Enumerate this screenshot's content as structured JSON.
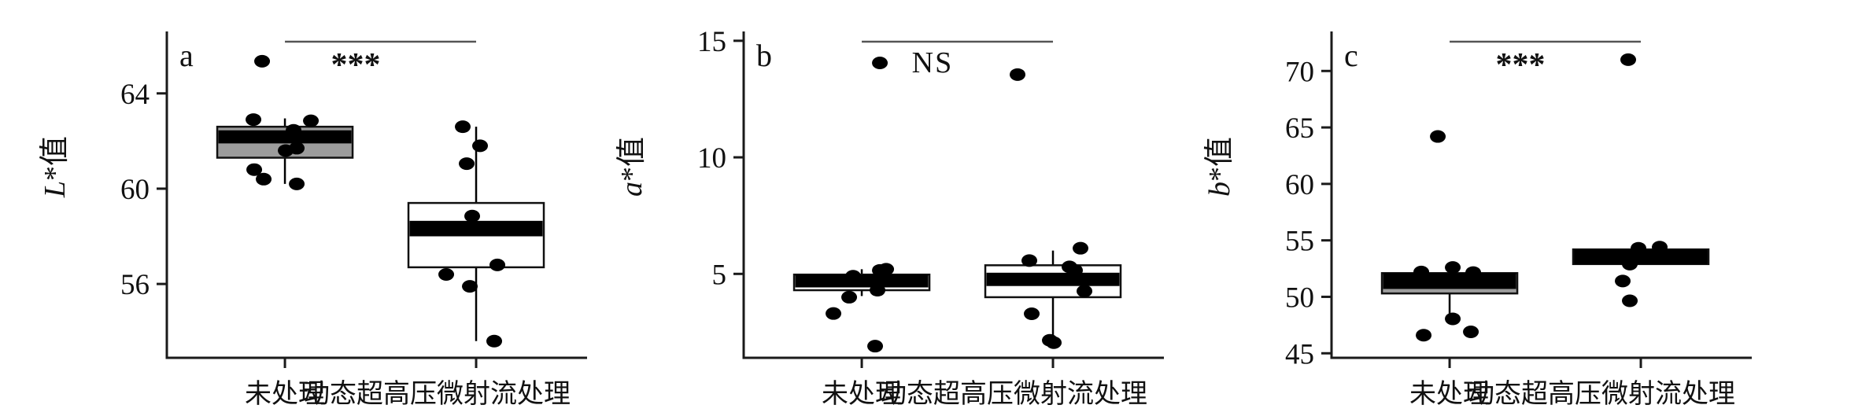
{
  "figure": {
    "background": "#ffffff",
    "axis_color": "#1a1a1a",
    "significance_line_color": "#555555",
    "point_color": "#000000"
  },
  "chart_data": [
    {
      "type": "box",
      "panel_label": "a",
      "ylabel": "L*值",
      "ylabel_italic": "L",
      "ylabel_rest": "*值",
      "yticks": [
        64,
        60,
        56
      ],
      "ylim": [
        52.9,
        66.6
      ],
      "significance": "***",
      "xlabel": "未处理 动态超高压微射流处理",
      "categories": [
        "未处理",
        "动态超高压微射流处理"
      ],
      "groups": [
        {
          "name": "未处理",
          "box_fill": "#9c9c9c",
          "q1": 61.3,
          "q3": 62.6,
          "median_band": [
            61.9,
            62.45
          ],
          "whiskers": [
            60.2,
            62.95
          ],
          "points": [
            [
              65.35,
              -29
            ],
            [
              62.9,
              -40
            ],
            [
              62.85,
              33
            ],
            [
              62.45,
              11
            ],
            [
              61.7,
              15
            ],
            [
              61.6,
              1
            ],
            [
              60.8,
              -39
            ],
            [
              60.4,
              -27
            ],
            [
              60.2,
              15
            ]
          ]
        },
        {
          "name": "动态超高压微射流处理",
          "box_fill": "#ffffff",
          "q1": 56.7,
          "q3": 59.4,
          "median_band": [
            58.0,
            58.65
          ],
          "whiskers": [
            53.6,
            62.6
          ],
          "points": [
            [
              62.6,
              -17
            ],
            [
              61.8,
              5
            ],
            [
              61.05,
              -12
            ],
            [
              58.85,
              -5
            ],
            [
              56.8,
              27
            ],
            [
              56.4,
              -38
            ],
            [
              55.9,
              -8
            ],
            [
              53.6,
              23
            ]
          ]
        }
      ]
    },
    {
      "type": "box",
      "panel_label": "b",
      "ylabel": "a*值",
      "ylabel_italic": "a",
      "ylabel_rest": "*值",
      "yticks": [
        15,
        10,
        5
      ],
      "ylim": [
        1.4,
        15.4
      ],
      "significance": "NS",
      "xlabel": "未处理 动态超高压微射流处理",
      "categories": [
        "未处理",
        "动态超高压微射流处理"
      ],
      "groups": [
        {
          "name": "未处理",
          "box_fill": "#ffffff",
          "q1": 4.3,
          "q3": 4.97,
          "median_band": [
            4.42,
            4.97
          ],
          "whiskers": [
            4.05,
            5.2
          ],
          "points": [
            [
              14.05,
              23
            ],
            [
              5.2,
              31
            ],
            [
              5.15,
              23
            ],
            [
              4.9,
              -11
            ],
            [
              4.3,
              20
            ],
            [
              4.0,
              -16
            ],
            [
              3.3,
              -36
            ],
            [
              1.9,
              17
            ]
          ]
        },
        {
          "name": "动态超高压微射流处理",
          "box_fill": "#ffffff",
          "q1": 4.0,
          "q3": 5.37,
          "median_band": [
            4.48,
            5.05
          ],
          "whiskers": [
            2.18,
            6.0
          ],
          "points": [
            [
              13.55,
              -45
            ],
            [
              6.1,
              35
            ],
            [
              5.57,
              -30
            ],
            [
              5.3,
              21
            ],
            [
              5.15,
              28
            ],
            [
              4.26,
              40
            ],
            [
              3.29,
              -27
            ],
            [
              2.15,
              -4
            ],
            [
              2.05,
              1
            ]
          ]
        }
      ]
    },
    {
      "type": "box",
      "panel_label": "c",
      "ylabel": "b*值",
      "ylabel_italic": "b",
      "ylabel_rest": "*值",
      "yticks": [
        70,
        65,
        60,
        55,
        50,
        45
      ],
      "ylim": [
        44.6,
        73.5
      ],
      "significance": "***",
      "xlabel": "未处理 动态超高压微射流处理",
      "categories": [
        "未处理",
        "动态超高压微射流处理"
      ],
      "groups": [
        {
          "name": "未处理",
          "box_fill": "#9c9c9c",
          "q1": 50.3,
          "q3": 52.1,
          "median_band": [
            50.7,
            52.1
          ],
          "whiskers": [
            47.85,
            52.5
          ],
          "points": [
            [
              64.2,
              -15
            ],
            [
              52.6,
              4
            ],
            [
              52.2,
              -36
            ],
            [
              52.15,
              30
            ],
            [
              48.05,
              4
            ],
            [
              46.9,
              27
            ],
            [
              46.6,
              -33
            ]
          ]
        },
        {
          "name": "动态超高压微射流处理",
          "box_fill": "#000000",
          "q1": 52.9,
          "q3": 54.2,
          "median_band": [
            52.9,
            54.2
          ],
          "whiskers": [
            52.9,
            54.6
          ],
          "points": [
            [
              71.0,
              -16
            ],
            [
              54.4,
              24
            ],
            [
              54.3,
              -3
            ],
            [
              53.5,
              4
            ],
            [
              52.9,
              -14
            ],
            [
              51.4,
              -23
            ],
            [
              49.65,
              -14
            ]
          ]
        }
      ]
    }
  ]
}
